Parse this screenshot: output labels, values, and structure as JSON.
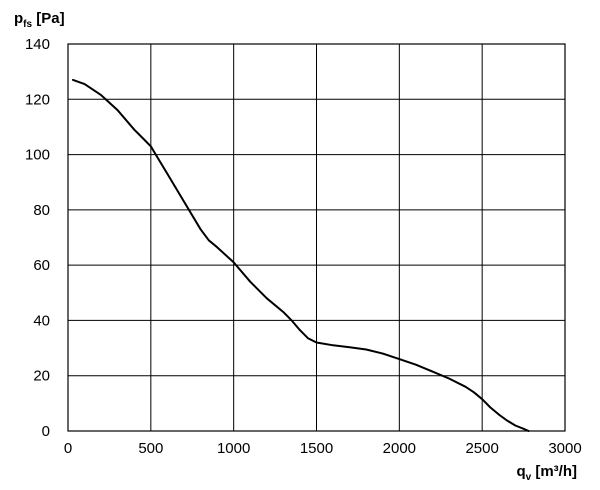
{
  "chart_data": {
    "type": "line",
    "ylabel": {
      "main": "p",
      "sub": "fs",
      "unit": " [Pa]"
    },
    "xlabel": {
      "main": "q",
      "sub": "v",
      "unit": " [m³/h]"
    },
    "xlim": [
      0,
      3000
    ],
    "ylim": [
      0,
      140
    ],
    "xticks": [
      "0",
      "500",
      "1000",
      "1500",
      "2000",
      "2500",
      "3000"
    ],
    "yticks": [
      "0",
      "20",
      "40",
      "60",
      "80",
      "100",
      "120",
      "140"
    ],
    "grid": true,
    "series": [
      {
        "x": [
          30,
          100,
          200,
          300,
          400,
          450,
          500,
          550,
          600,
          700,
          800,
          850,
          900,
          1000,
          1100,
          1200,
          1300,
          1350,
          1400,
          1450,
          1500,
          1600,
          1700,
          1800,
          1900,
          2000,
          2100,
          2200,
          2300,
          2400,
          2450,
          2500,
          2550,
          2600,
          2650,
          2700,
          2750,
          2780
        ],
        "y": [
          127,
          125.5,
          121.5,
          116,
          109,
          106,
          103,
          98,
          93,
          83,
          73,
          69,
          66.5,
          61,
          54,
          48,
          43,
          40,
          36.5,
          33.5,
          32,
          31,
          30.3,
          29.5,
          28,
          26,
          24,
          21.5,
          19,
          16,
          14,
          11.5,
          8.5,
          6,
          3.8,
          2,
          0.8,
          0
        ]
      }
    ]
  }
}
